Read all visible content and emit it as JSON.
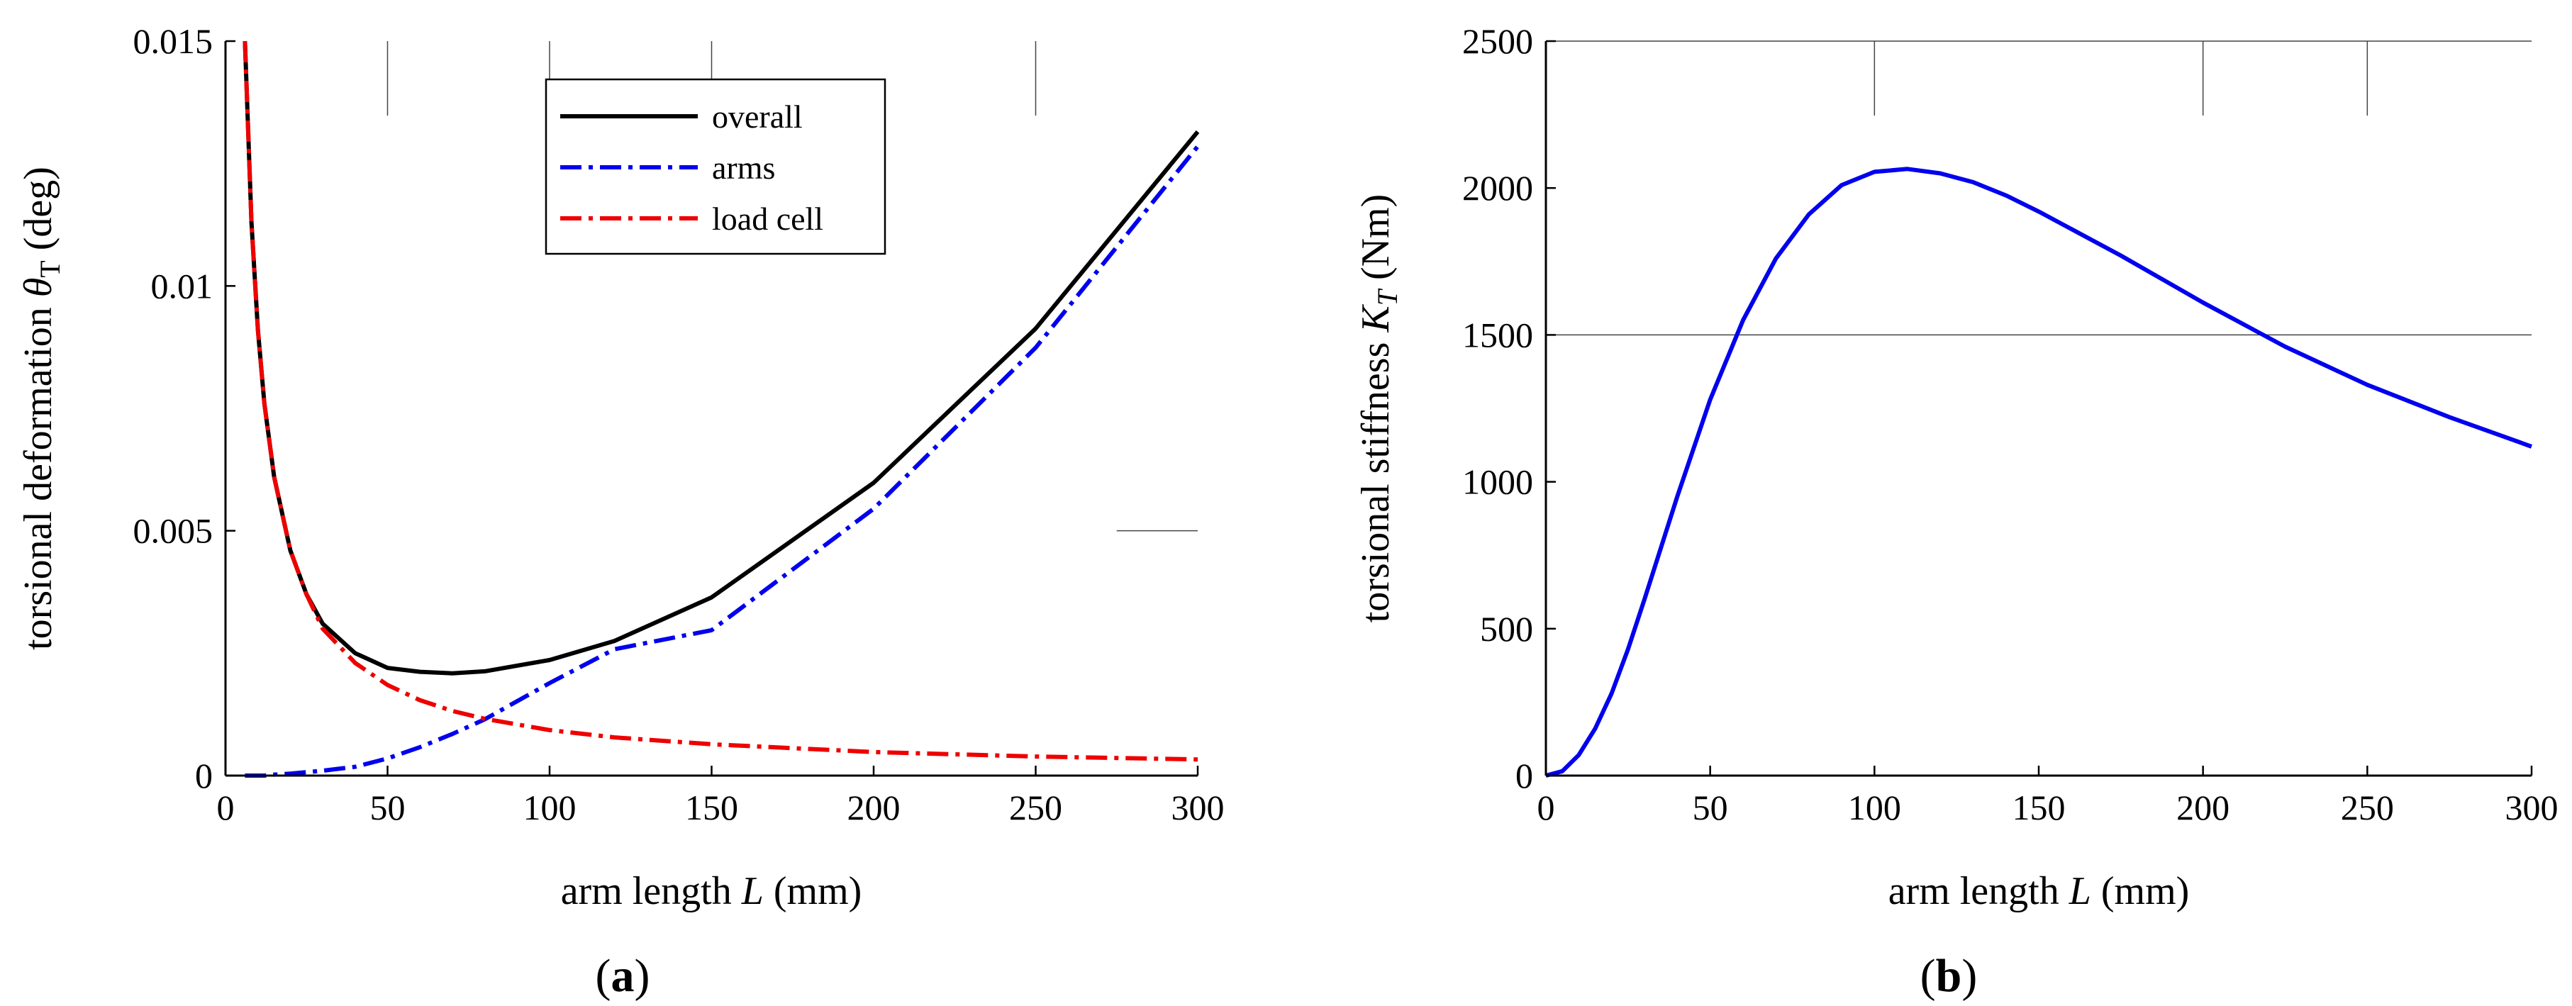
{
  "figure": {
    "panels": [
      {
        "label_open": "(",
        "label_letter": "a",
        "label_close": ")"
      },
      {
        "label_open": "(",
        "label_letter": "b",
        "label_close": ")"
      }
    ]
  },
  "chart_data": [
    {
      "type": "line",
      "title": "",
      "xlabel": {
        "pre": "arm length ",
        "var": "L",
        "post": " (mm)"
      },
      "ylabel": {
        "pre": "torsional deformation ",
        "var": "θ",
        "sub": "T",
        "post": " (deg)"
      },
      "xlim": [
        0,
        300
      ],
      "ylim": [
        0,
        0.015
      ],
      "xticks": [
        0,
        50,
        100,
        150,
        200,
        250,
        300
      ],
      "xtick_labels": [
        "0",
        "50",
        "100",
        "150",
        "200",
        "250",
        "300"
      ],
      "yticks": [
        0,
        0.005,
        0.01,
        0.015
      ],
      "ytick_labels": [
        "0",
        "0.005",
        "0.01",
        "0.015"
      ],
      "legend_position": "top-center",
      "x": [
        6,
        8,
        10,
        12,
        15,
        20,
        25,
        30,
        40,
        50,
        60,
        70,
        80,
        100,
        120,
        150,
        200,
        250,
        300
      ],
      "series": [
        {
          "name": "overall",
          "color": "#000000",
          "style": "solid",
          "values": [
            0.015,
            0.0113,
            0.0091,
            0.0076,
            0.0061,
            0.0046,
            0.0037,
            0.0031,
            0.0025,
            0.0022,
            0.00212,
            0.00209,
            0.00213,
            0.00236,
            0.00275,
            0.00364,
            0.00598,
            0.00913,
            0.01315
          ]
        },
        {
          "name": "arms",
          "color": "#0000ee",
          "style": "dashdot",
          "values": [
            0.0,
            0.0,
            0.0,
            0.0,
            2e-05,
            4e-05,
            7e-05,
            0.0001,
            0.00018,
            0.00035,
            0.00058,
            0.00085,
            0.00115,
            0.00189,
            0.00258,
            0.00297,
            0.00545,
            0.00874,
            0.01285
          ]
        },
        {
          "name": "load cell",
          "color": "#ee0000",
          "style": "dashdot",
          "values": [
            0.015,
            0.0113,
            0.0091,
            0.0076,
            0.0061,
            0.0046,
            0.0037,
            0.003,
            0.0023,
            0.00185,
            0.00154,
            0.00132,
            0.00116,
            0.00093,
            0.00078,
            0.00064,
            0.00048,
            0.00039,
            0.00033
          ]
        }
      ]
    },
    {
      "type": "line",
      "title": "",
      "xlabel": {
        "pre": "arm length ",
        "var": "L",
        "post": " (mm)"
      },
      "ylabel": {
        "pre": "torsional stiffness ",
        "var": "K",
        "sub": "T",
        "post": " (Nm)"
      },
      "xlim": [
        0,
        300
      ],
      "ylim": [
        0,
        2500
      ],
      "xticks": [
        0,
        50,
        100,
        150,
        200,
        250,
        300
      ],
      "xtick_labels": [
        "0",
        "50",
        "100",
        "150",
        "200",
        "250",
        "300"
      ],
      "yticks": [
        0,
        500,
        1000,
        1500,
        2000,
        2500
      ],
      "ytick_labels": [
        "0",
        "500",
        "1000",
        "1500",
        "2000",
        "2500"
      ],
      "x": [
        0,
        5,
        10,
        15,
        20,
        25,
        30,
        40,
        50,
        60,
        70,
        80,
        90,
        100,
        110,
        120,
        130,
        140,
        150,
        175,
        200,
        225,
        250,
        275,
        300
      ],
      "series": [
        {
          "name": "stiffness",
          "color": "#0000ee",
          "style": "solid",
          "values": [
            0,
            15,
            70,
            160,
            280,
            430,
            600,
            950,
            1280,
            1550,
            1760,
            1910,
            2010,
            2055,
            2065,
            2050,
            2020,
            1975,
            1920,
            1770,
            1610,
            1460,
            1330,
            1220,
            1120
          ]
        }
      ]
    }
  ]
}
